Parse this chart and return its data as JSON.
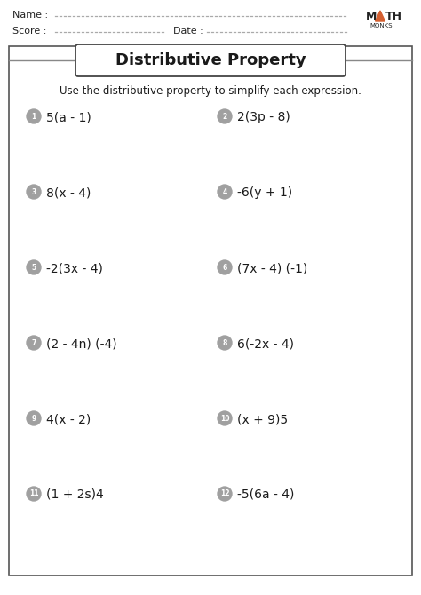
{
  "title": "Distributive Property",
  "subtitle": "Use the distributive property to simplify each expression.",
  "name_label": "Name :",
  "score_label": "Score :",
  "date_label": "Date :",
  "problems": [
    {
      "num": "1",
      "expr": "5(a - 1)"
    },
    {
      "num": "2",
      "expr": "2(3p - 8)"
    },
    {
      "num": "3",
      "expr": "8(x - 4)"
    },
    {
      "num": "4",
      "expr": "-6(y + 1)"
    },
    {
      "num": "5",
      "expr": "-2(3x - 4)"
    },
    {
      "num": "6",
      "expr": "(7x - 4) (-1)"
    },
    {
      "num": "7",
      "expr": "(2 - 4n) (-4)"
    },
    {
      "num": "8",
      "expr": "6(-2x - 4)"
    },
    {
      "num": "9",
      "expr": "4(x - 2)"
    },
    {
      "num": "10",
      "expr": "(x + 9)5"
    },
    {
      "num": "11",
      "expr": "(1 + 2s)4"
    },
    {
      "num": "12",
      "expr": "-5(6a - 4)"
    }
  ],
  "num_circle_color": "#a0a0a0",
  "num_text_color": "#ffffff",
  "expr_text_color": "#1a1a1a",
  "background_color": "#ffffff",
  "border_color": "#555555",
  "title_box_color": "#ffffff",
  "logo_color_text": "#222222",
  "logo_triangle_color": "#d45f30",
  "dot_line_color": "#aaaaaa"
}
